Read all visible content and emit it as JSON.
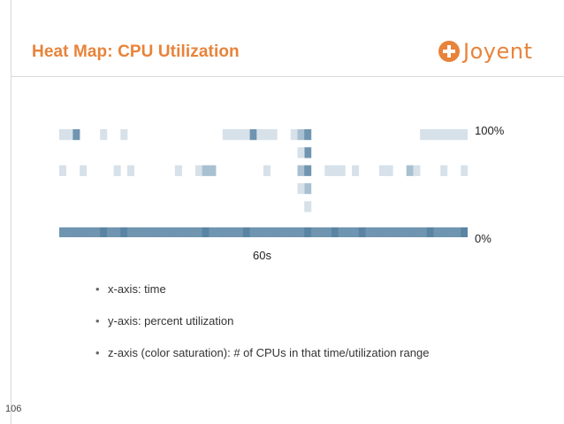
{
  "slide": {
    "title": "Heat Map: CPU Utilization",
    "page_number": "106"
  },
  "logo": {
    "text": "Joyent",
    "icon": "plus-circle-icon",
    "color": "#e8833a"
  },
  "colors": {
    "accent": "#e8833a",
    "cell_light": "#d6e1ea",
    "cell_mid": "#a9c0d1",
    "cell_dark": "#6f95b0",
    "cell_darkest": "#5a84a3"
  },
  "chart_data": {
    "type": "heatmap",
    "title": "",
    "xlabel": "60s",
    "ylabel": "",
    "y_top_label": "100%",
    "y_bottom_label": "0%",
    "x_range": [
      0,
      60
    ],
    "y_range": [
      0,
      100
    ],
    "columns": 60,
    "rows": 6,
    "cells": [
      [
        0,
        5,
        1
      ],
      [
        1,
        5,
        1
      ],
      [
        2,
        5,
        3
      ],
      [
        6,
        5,
        1
      ],
      [
        9,
        5,
        1
      ],
      [
        24,
        5,
        1
      ],
      [
        25,
        5,
        1
      ],
      [
        26,
        5,
        1
      ],
      [
        27,
        5,
        1
      ],
      [
        28,
        5,
        3
      ],
      [
        29,
        5,
        1
      ],
      [
        30,
        5,
        1
      ],
      [
        31,
        5,
        1
      ],
      [
        34,
        5,
        1
      ],
      [
        35,
        5,
        2
      ],
      [
        36,
        5,
        3
      ],
      [
        53,
        5,
        1
      ],
      [
        54,
        5,
        1
      ],
      [
        55,
        5,
        1
      ],
      [
        56,
        5,
        1
      ],
      [
        57,
        5,
        1
      ],
      [
        58,
        5,
        1
      ],
      [
        59,
        5,
        1
      ],
      [
        36,
        4,
        3
      ],
      [
        35,
        4,
        1
      ],
      [
        0,
        3,
        1
      ],
      [
        3,
        3,
        1
      ],
      [
        8,
        3,
        1
      ],
      [
        10,
        3,
        1
      ],
      [
        17,
        3,
        1
      ],
      [
        20,
        3,
        1
      ],
      [
        21,
        3,
        2
      ],
      [
        22,
        3,
        2
      ],
      [
        30,
        3,
        1
      ],
      [
        35,
        3,
        2
      ],
      [
        36,
        3,
        3
      ],
      [
        39,
        3,
        1
      ],
      [
        40,
        3,
        1
      ],
      [
        41,
        3,
        1
      ],
      [
        43,
        3,
        1
      ],
      [
        47,
        3,
        1
      ],
      [
        48,
        3,
        1
      ],
      [
        51,
        3,
        2
      ],
      [
        52,
        3,
        1
      ],
      [
        56,
        3,
        1
      ],
      [
        59,
        3,
        1
      ],
      [
        36,
        2,
        2
      ],
      [
        35,
        2,
        1
      ],
      [
        36,
        1,
        1
      ],
      [
        0,
        0,
        3
      ],
      [
        1,
        0,
        3
      ],
      [
        2,
        0,
        3
      ],
      [
        3,
        0,
        3
      ],
      [
        4,
        0,
        3
      ],
      [
        5,
        0,
        3
      ],
      [
        6,
        0,
        4
      ],
      [
        7,
        0,
        3
      ],
      [
        8,
        0,
        3
      ],
      [
        9,
        0,
        4
      ],
      [
        10,
        0,
        3
      ],
      [
        11,
        0,
        3
      ],
      [
        12,
        0,
        3
      ],
      [
        13,
        0,
        3
      ],
      [
        14,
        0,
        3
      ],
      [
        15,
        0,
        3
      ],
      [
        16,
        0,
        3
      ],
      [
        17,
        0,
        3
      ],
      [
        18,
        0,
        3
      ],
      [
        19,
        0,
        3
      ],
      [
        20,
        0,
        3
      ],
      [
        21,
        0,
        4
      ],
      [
        22,
        0,
        3
      ],
      [
        23,
        0,
        3
      ],
      [
        24,
        0,
        3
      ],
      [
        25,
        0,
        3
      ],
      [
        26,
        0,
        3
      ],
      [
        27,
        0,
        4
      ],
      [
        28,
        0,
        3
      ],
      [
        29,
        0,
        3
      ],
      [
        30,
        0,
        3
      ],
      [
        31,
        0,
        3
      ],
      [
        32,
        0,
        3
      ],
      [
        33,
        0,
        3
      ],
      [
        34,
        0,
        3
      ],
      [
        35,
        0,
        3
      ],
      [
        36,
        0,
        4
      ],
      [
        37,
        0,
        3
      ],
      [
        38,
        0,
        3
      ],
      [
        39,
        0,
        3
      ],
      [
        40,
        0,
        4
      ],
      [
        41,
        0,
        3
      ],
      [
        42,
        0,
        3
      ],
      [
        43,
        0,
        3
      ],
      [
        44,
        0,
        4
      ],
      [
        45,
        0,
        3
      ],
      [
        46,
        0,
        3
      ],
      [
        47,
        0,
        3
      ],
      [
        48,
        0,
        3
      ],
      [
        49,
        0,
        3
      ],
      [
        50,
        0,
        3
      ],
      [
        51,
        0,
        3
      ],
      [
        52,
        0,
        3
      ],
      [
        53,
        0,
        3
      ],
      [
        54,
        0,
        4
      ],
      [
        55,
        0,
        3
      ],
      [
        56,
        0,
        3
      ],
      [
        57,
        0,
        3
      ],
      [
        58,
        0,
        3
      ],
      [
        59,
        0,
        4
      ]
    ]
  },
  "bullets": [
    "x-axis: time",
    "y-axis: percent utilization",
    "z-axis (color saturation): # of CPUs in that time/utilization range"
  ]
}
